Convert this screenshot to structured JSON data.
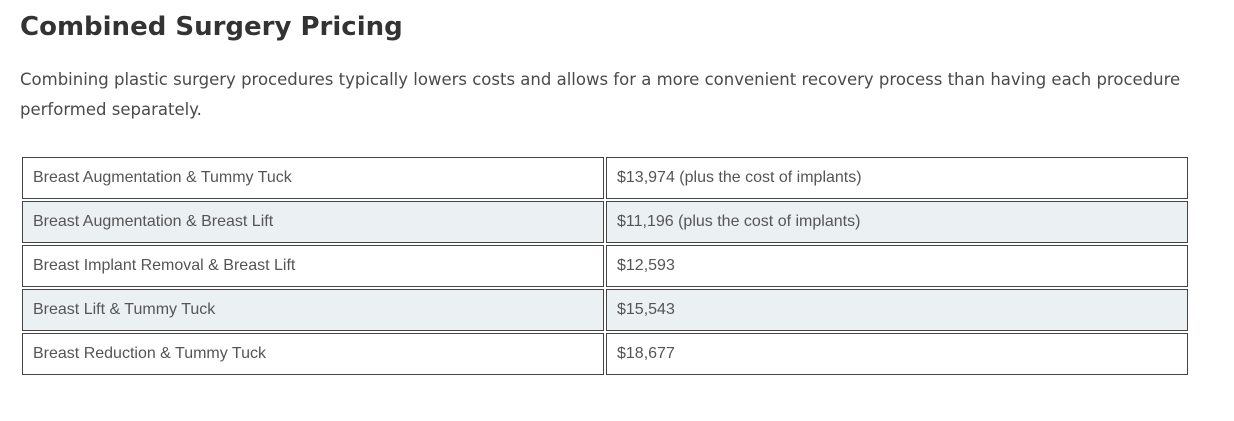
{
  "heading": "Combined Surgery Pricing",
  "intro": "Combining plastic surgery procedures typically lowers costs and allows for a more convenient recovery process than having each procedure performed separately.",
  "rows": [
    {
      "procedure": "Breast Augmentation & Tummy Tuck",
      "price": "$13,974 (plus the cost of implants)"
    },
    {
      "procedure": "Breast Augmentation & Breast Lift",
      "price": "$11,196 (plus the cost of implants)"
    },
    {
      "procedure": "Breast Implant Removal & Breast Lift",
      "price": "$12,593"
    },
    {
      "procedure": "Breast Lift & Tummy Tuck",
      "price": "$15,543"
    },
    {
      "procedure": "Breast Reduction & Tummy Tuck",
      "price": "$18,677"
    }
  ],
  "colors": {
    "alt_row_background": "#ebf0f2",
    "border": "#444444",
    "heading_text": "#333333"
  }
}
